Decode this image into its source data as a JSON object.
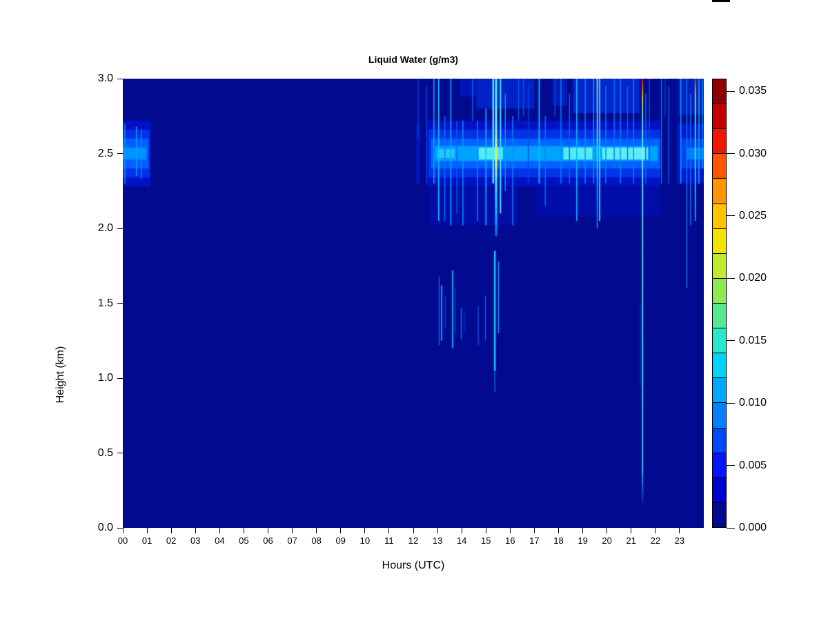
{
  "figure": {
    "title": "Liquid Water (g/m3)",
    "xlabel": "Hours (UTC)",
    "ylabel": "Height (km)"
  },
  "chart_data": {
    "type": "heatmap",
    "title": "Liquid Water (g/m3)",
    "xlabel": "Hours (UTC)",
    "ylabel": "Height (km)",
    "x_range": [
      0,
      24
    ],
    "y_range": [
      0,
      3
    ],
    "x_tick_values": [
      0,
      1,
      2,
      3,
      4,
      5,
      6,
      7,
      8,
      9,
      10,
      11,
      12,
      13,
      14,
      15,
      16,
      17,
      18,
      19,
      20,
      21,
      22,
      23
    ],
    "x_tick_labels": [
      "00",
      "01",
      "02",
      "03",
      "04",
      "05",
      "06",
      "07",
      "08",
      "09",
      "10",
      "11",
      "12",
      "13",
      "14",
      "15",
      "16",
      "17",
      "18",
      "19",
      "20",
      "21",
      "22",
      "23"
    ],
    "y_tick_values": [
      0,
      0.5,
      1.0,
      1.5,
      2.0,
      2.5,
      3.0
    ],
    "y_tick_labels": [
      "0.0",
      "0.5",
      "1.0",
      "1.5",
      "2.0",
      "2.5",
      "3.0"
    ],
    "background_value": 0.0,
    "background_color": "#020A8F",
    "colorbar": {
      "range": [
        0,
        0.036
      ],
      "step": 0.002,
      "segment_colors_bottom_to_top": [
        "#020A8F",
        "#0000D2",
        "#0018FF",
        "#0048FF",
        "#0080FF",
        "#00A8FF",
        "#00D4FF",
        "#29E8C9",
        "#53E891",
        "#90E855",
        "#C4E82E",
        "#F2E500",
        "#FFC400",
        "#FF9400",
        "#FF5400",
        "#F21800",
        "#C40000",
        "#8F0000"
      ],
      "tick_values": [
        0.0,
        0.005,
        0.01,
        0.015,
        0.02,
        0.025,
        0.03,
        0.035
      ],
      "tick_labels": [
        "0.000",
        "0.005",
        "0.010",
        "0.015",
        "0.020",
        "0.025",
        "0.030",
        "0.035"
      ]
    },
    "features": {
      "regions": [
        [
          0,
          1.15,
          2.28,
          2.72,
          "#0012C4"
        ],
        [
          0,
          1.12,
          2.34,
          2.66,
          "#0030E8"
        ],
        [
          0,
          1.06,
          2.4,
          2.6,
          "#0060FF"
        ],
        [
          0,
          0.97,
          2.46,
          2.54,
          "#0092FF"
        ],
        [
          12.12,
          12.28,
          2.3,
          2.7,
          "#0016BC"
        ],
        [
          12.7,
          16.35,
          2.02,
          2.28,
          "#000DA6"
        ],
        [
          17.0,
          22.2,
          2.08,
          2.28,
          "#000DA6"
        ],
        [
          13.9,
          14.6,
          2.88,
          3.0,
          "#0016B4"
        ],
        [
          14.6,
          17.0,
          2.8,
          3.0,
          "#0022C4"
        ],
        [
          17.75,
          18.35,
          2.82,
          3.0,
          "#001CBA"
        ],
        [
          18.6,
          21.35,
          2.77,
          3.0,
          "#0026CC"
        ],
        [
          22.95,
          24,
          2.76,
          3.0,
          "#0020C0"
        ],
        [
          12.55,
          22.2,
          2.28,
          2.72,
          "#0012C4"
        ],
        [
          12.62,
          22.2,
          2.34,
          2.66,
          "#0032E8"
        ],
        [
          12.72,
          22.2,
          2.4,
          2.6,
          "#0062FF"
        ],
        [
          12.9,
          22.1,
          2.45,
          2.55,
          "#00A2FF"
        ],
        [
          13.0,
          13.7,
          2.47,
          2.53,
          "#20C8FF"
        ],
        [
          14.7,
          15.7,
          2.46,
          2.54,
          "#55EAF2"
        ],
        [
          18.2,
          19.4,
          2.46,
          2.54,
          "#55EAF2"
        ],
        [
          19.8,
          21.7,
          2.46,
          2.54,
          "#60ECF4"
        ],
        [
          22.9,
          24,
          2.3,
          2.7,
          "#0018CC"
        ],
        [
          23.05,
          24,
          2.4,
          2.6,
          "#0042F0"
        ],
        [
          23.3,
          24,
          2.46,
          2.54,
          "#0080FF"
        ]
      ],
      "streaks": [
        [
          0.08,
          0.035,
          2.3,
          2.7,
          "#00A0FF"
        ],
        [
          0.56,
          0.04,
          2.35,
          2.68,
          "#00AAFF"
        ],
        [
          0.76,
          0.04,
          2.33,
          2.66,
          "#0092FF"
        ],
        [
          12.2,
          0.04,
          2.6,
          3.0,
          "#0040E8"
        ],
        [
          12.55,
          0.04,
          2.3,
          2.95,
          "#0048E8"
        ],
        [
          12.85,
          0.045,
          2.3,
          3.0,
          "#00AAFF"
        ],
        [
          13.05,
          0.045,
          2.05,
          3.0,
          "#00C8FF"
        ],
        [
          13.3,
          0.04,
          2.05,
          2.75,
          "#0078FF"
        ],
        [
          13.55,
          0.045,
          2.02,
          3.0,
          "#00B0FF"
        ],
        [
          13.8,
          0.04,
          2.1,
          2.72,
          "#0060FF"
        ],
        [
          14.05,
          0.04,
          2.02,
          2.72,
          "#00A0FF"
        ],
        [
          14.45,
          0.04,
          2.72,
          3.0,
          "#0068FF"
        ],
        [
          14.65,
          0.04,
          2.05,
          2.72,
          "#0090FF"
        ],
        [
          15.0,
          0.045,
          2.02,
          2.8,
          "#00C0FF"
        ],
        [
          15.3,
          0.07,
          2.3,
          3.0,
          "#50E8FF"
        ],
        [
          15.6,
          0.06,
          2.1,
          3.0,
          "#40E0FF"
        ],
        [
          15.8,
          0.04,
          2.25,
          2.9,
          "#00A0FF"
        ],
        [
          16.1,
          0.04,
          2.02,
          2.75,
          "#0088FF"
        ],
        [
          16.35,
          0.04,
          2.72,
          3.0,
          "#0058E8"
        ],
        [
          16.55,
          0.04,
          2.75,
          3.0,
          "#0058E8"
        ],
        [
          16.75,
          0.04,
          2.3,
          2.95,
          "#0048E0"
        ],
        [
          17.2,
          0.05,
          2.3,
          3.0,
          "#00C8FF"
        ],
        [
          17.45,
          0.04,
          2.15,
          2.75,
          "#0078FF"
        ],
        [
          17.85,
          0.04,
          2.75,
          3.0,
          "#0050E0"
        ],
        [
          18.1,
          0.04,
          2.3,
          3.0,
          "#0090FF"
        ],
        [
          18.45,
          0.04,
          2.3,
          2.9,
          "#0068FF"
        ],
        [
          18.75,
          0.045,
          2.05,
          3.0,
          "#00B8FF"
        ],
        [
          19.1,
          0.04,
          2.3,
          3.0,
          "#0090FF"
        ],
        [
          19.45,
          0.04,
          2.3,
          3.0,
          "#00A0FF"
        ],
        [
          19.7,
          0.05,
          2.05,
          3.0,
          "#40E0FF"
        ],
        [
          19.95,
          0.04,
          2.3,
          2.95,
          "#0088FF"
        ],
        [
          20.3,
          0.04,
          2.4,
          3.0,
          "#0078FF"
        ],
        [
          20.55,
          0.04,
          2.3,
          3.0,
          "#0090FF"
        ],
        [
          20.85,
          0.04,
          2.4,
          2.95,
          "#0068FF"
        ],
        [
          21.1,
          0.04,
          2.3,
          3.0,
          "#0088FF"
        ],
        [
          21.38,
          0.03,
          0.95,
          1.5,
          "#0038C8"
        ],
        [
          21.6,
          0.04,
          2.3,
          2.9,
          "#0068FF"
        ],
        [
          21.75,
          0.04,
          2.4,
          3.0,
          "#0058E8"
        ],
        [
          22.25,
          0.04,
          2.3,
          3.0,
          "#0078FF"
        ],
        [
          22.4,
          0.035,
          2.75,
          3.0,
          "#0048D8"
        ],
        [
          22.55,
          0.04,
          2.3,
          2.95,
          "#0058E8"
        ],
        [
          23.05,
          0.045,
          2.3,
          3.0,
          "#00A0FF"
        ],
        [
          23.3,
          0.035,
          1.6,
          3.0,
          "#0090FF"
        ],
        [
          23.45,
          0.04,
          2.02,
          2.9,
          "#0078FF"
        ],
        [
          23.8,
          0.045,
          2.3,
          3.0,
          "#00B0FF"
        ],
        [
          23.95,
          0.04,
          2.4,
          3.0,
          "#0098FF"
        ],
        [
          13.07,
          0.04,
          1.22,
          1.68,
          "#0068FF"
        ],
        [
          13.17,
          0.05,
          1.25,
          1.62,
          "#00B8FF"
        ],
        [
          13.32,
          0.035,
          1.33,
          1.55,
          "#0048E0"
        ],
        [
          13.62,
          0.045,
          1.2,
          1.72,
          "#00C8FF"
        ],
        [
          13.72,
          0.03,
          1.3,
          1.6,
          "#0050E8"
        ],
        [
          13.98,
          0.04,
          1.26,
          1.47,
          "#0078FF"
        ],
        [
          14.1,
          0.03,
          1.3,
          1.45,
          "#0040D8"
        ],
        [
          14.68,
          0.03,
          1.22,
          1.48,
          "#0058F0"
        ],
        [
          14.98,
          0.035,
          1.25,
          1.55,
          "#0068FF"
        ],
        [
          15.37,
          0.07,
          1.05,
          1.85,
          "#00D0FF"
        ],
        [
          15.37,
          0.03,
          0.91,
          1.05,
          "#0080FF"
        ],
        [
          15.52,
          0.04,
          1.3,
          1.78,
          "#0098FF"
        ]
      ],
      "gradient_streaks": [
        {
          "x": 15.42,
          "w": 0.09,
          "y0": 1.95,
          "y1": 3.0,
          "stops": [
            [
              3.0,
              "#40E8FF"
            ],
            [
              2.72,
              "#70EEFF"
            ],
            [
              2.56,
              "#D0F080"
            ],
            [
              2.44,
              "#E6F25C"
            ],
            [
              2.3,
              "#40E8FF"
            ],
            [
              2.05,
              "#00A8FF"
            ],
            [
              1.95,
              "#0070E8"
            ]
          ]
        },
        {
          "x": 19.6,
          "w": 0.05,
          "y0": 2.0,
          "y1": 3.0,
          "stops": [
            [
              3.0,
              "#E8E850"
            ],
            [
              2.85,
              "#80E8C0"
            ],
            [
              2.6,
              "#60E8E8"
            ],
            [
              2.3,
              "#00C0FF"
            ],
            [
              2.0,
              "#0080FF"
            ]
          ]
        },
        {
          "x": 21.47,
          "w": 0.05,
          "y0": 0.16,
          "y1": 3.0,
          "stops": [
            [
              3.0,
              "#C81800"
            ],
            [
              2.95,
              "#F05800"
            ],
            [
              2.88,
              "#EEE000"
            ],
            [
              2.76,
              "#70E8D0"
            ],
            [
              2.5,
              "#80F0F0"
            ],
            [
              2.2,
              "#60E8F0"
            ],
            [
              1.2,
              "#50E0FF"
            ],
            [
              0.4,
              "#40D0FF"
            ],
            [
              0.24,
              "#0060E8"
            ],
            [
              0.16,
              "#001CA0"
            ]
          ]
        },
        {
          "x": 23.65,
          "w": 0.05,
          "y0": 2.05,
          "y1": 3.0,
          "stops": [
            [
              3.0,
              "#D82000"
            ],
            [
              2.93,
              "#F0B000"
            ],
            [
              2.86,
              "#C8E860"
            ],
            [
              2.7,
              "#50E8E0"
            ],
            [
              2.4,
              "#40E0FF"
            ],
            [
              2.05,
              "#00A8FF"
            ]
          ]
        }
      ]
    }
  }
}
